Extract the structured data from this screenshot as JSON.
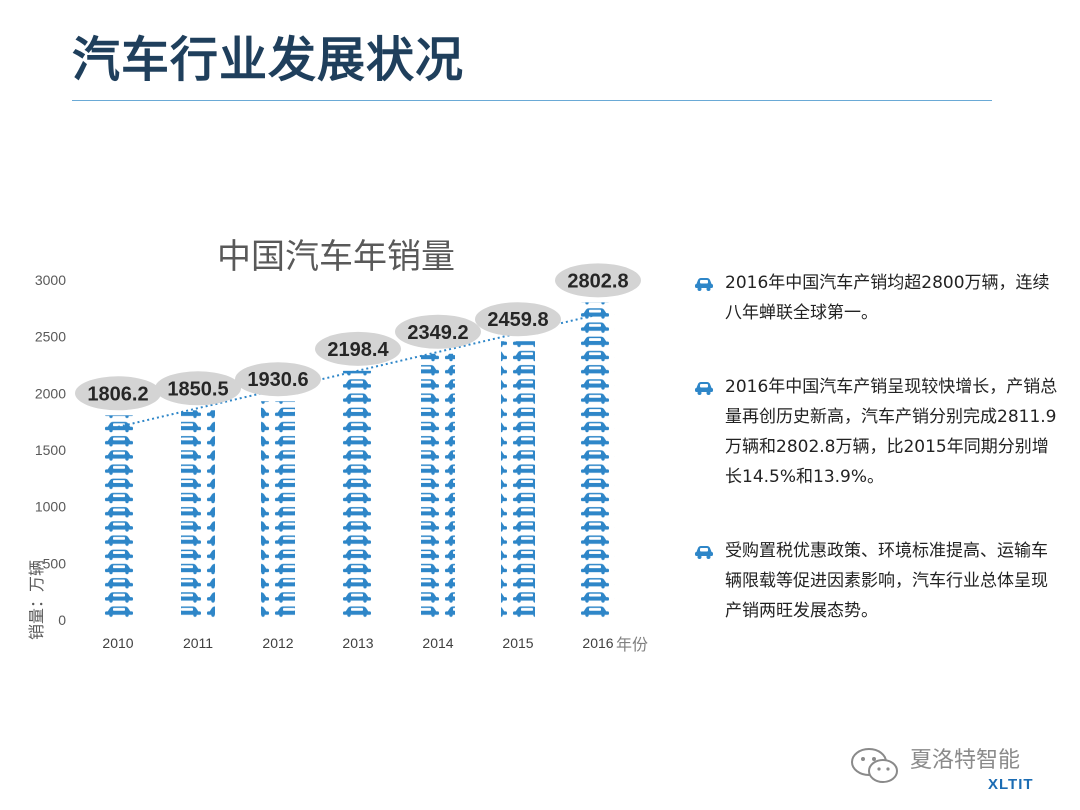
{
  "page": {
    "title": "汽车行业发展状况"
  },
  "chart_data": {
    "type": "bar",
    "title": "中国汽车年销量",
    "ylabel": "销量：万辆",
    "xlabel": "年份",
    "categories": [
      "2010",
      "2011",
      "2012",
      "2013",
      "2014",
      "2015",
      "2016"
    ],
    "values": [
      1806.2,
      1850.5,
      1930.6,
      2198.4,
      2349.2,
      2459.8,
      2802.8
    ],
    "value_labels": [
      "1806.2",
      "1850.5",
      "1930.6",
      "2198.4",
      "2349.2",
      "2459.8",
      "2802.8"
    ],
    "yticks": [
      "0",
      "500",
      "1000",
      "1500",
      "2000",
      "2500",
      "3000"
    ],
    "ylim": [
      0,
      3000
    ],
    "trendline": "dotted",
    "bar_style": "stacked car pictograms",
    "bar_color": "#2e86c8",
    "label_bubble_color": "#d4d4d4"
  },
  "bullets": [
    {
      "icon": "car-icon",
      "text": "2016年中国汽车产销均超2800万辆，连续八年蝉联全球第一。"
    },
    {
      "icon": "car-icon",
      "text": "2016年中国汽车产销呈现较快增长，产销总量再创历史新高，汽车产销分别完成2811.9万辆和2802.8万辆，比2015年同期分别增长14.5%和13.9%。"
    },
    {
      "icon": "car-icon",
      "text": "受购置税优惠政策、环境标准提高、运输车辆限载等促进因素影响，汽车行业总体呈现产销两旺发展态势。"
    }
  ],
  "watermark": {
    "text": "夏洛特智能",
    "brand": "XLTIT"
  }
}
